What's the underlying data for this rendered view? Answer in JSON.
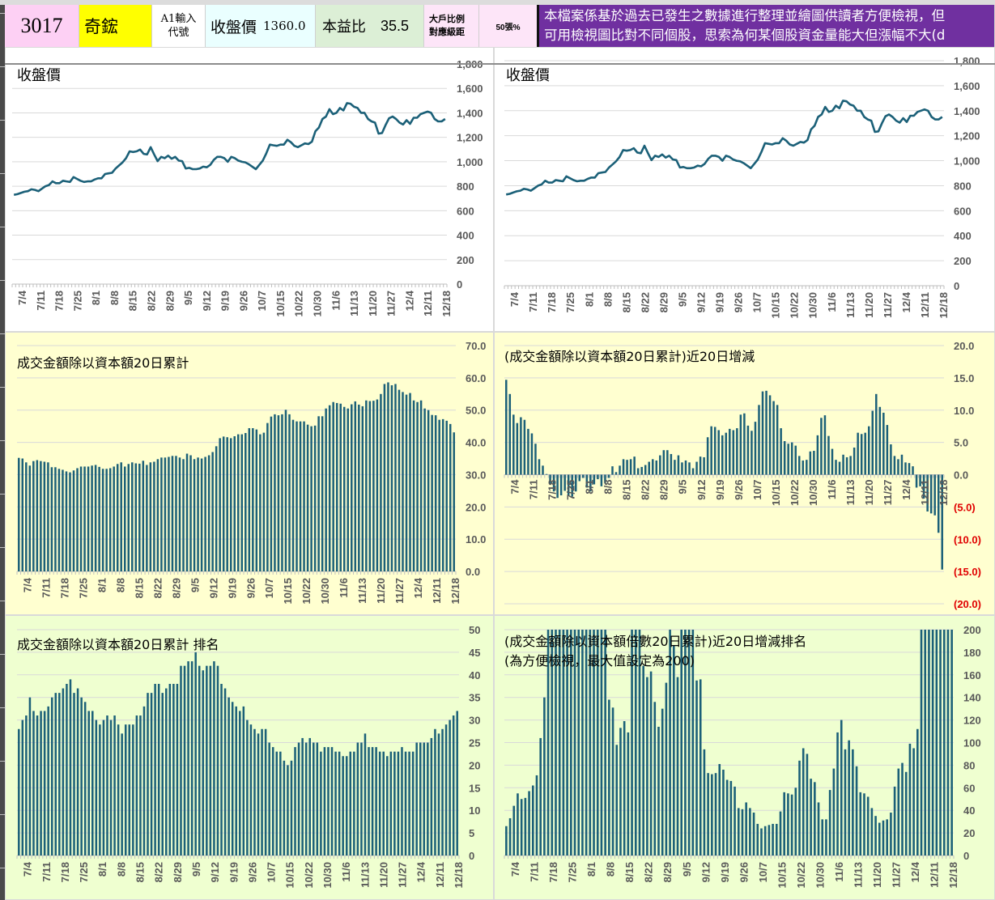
{
  "header": {
    "stock_code": "3017",
    "stock_name": "奇鋐",
    "input_hint_line1": "A1輸入",
    "input_hint_line2": "代號",
    "close_label": "收盤價",
    "close_value": "1360.0",
    "pe_label": "本益比",
    "pe_value": "35.5",
    "big_holder_line1": "大戶比例",
    "big_holder_line2": "對應級距",
    "big_holder_level": "50張%",
    "notice_line1": "本檔案係基於過去已發生之數據進行整理並繪圖供讀者方便檢視，但",
    "notice_line2": "可用檢視圖比對不同個股，思索為何某個股資金量能大但漲幅不大(d"
  },
  "colors": {
    "series": "#1b6078",
    "panel_yellow": "#ffffd0",
    "panel_green": "#efffd0",
    "notice_bg": "#7030a0",
    "negative_label": "#e00000"
  },
  "chart_data": [
    {
      "id": "price-left",
      "type": "line",
      "title": "收盤價",
      "xlabel": "",
      "ylabel": "",
      "ylim": [
        0,
        1800
      ],
      "yticks": [
        "0",
        "200",
        "400",
        "600",
        "800",
        "1,000",
        "1,200",
        "1,400",
        "1,600",
        "1,800"
      ],
      "xtick_labels": [
        "7/4",
        "7/11",
        "7/18",
        "7/25",
        "8/1",
        "8/8",
        "8/15",
        "8/22",
        "8/29",
        "9/5",
        "9/12",
        "9/19",
        "9/26",
        "10/7",
        "10/15",
        "10/22",
        "10/30",
        "11/6",
        "11/13",
        "11/20",
        "11/27",
        "12/4",
        "12/11",
        "12/18"
      ],
      "grid": true,
      "values": [
        730,
        735,
        745,
        755,
        760,
        775,
        770,
        760,
        780,
        800,
        810,
        840,
        825,
        825,
        845,
        840,
        835,
        875,
        860,
        845,
        835,
        840,
        840,
        855,
        865,
        865,
        900,
        905,
        910,
        945,
        970,
        995,
        1030,
        1085,
        1080,
        1085,
        1100,
        1065,
        1060,
        1120,
        1060,
        1005,
        1040,
        1030,
        1050,
        1025,
        1040,
        1010,
        1005,
        945,
        950,
        940,
        940,
        945,
        960,
        955,
        975,
        1015,
        1040,
        1040,
        1030,
        1000,
        1040,
        1030,
        1010,
        1000,
        995,
        980,
        960,
        940,
        975,
        1010,
        1070,
        1140,
        1135,
        1130,
        1140,
        1140,
        1180,
        1160,
        1130,
        1120,
        1135,
        1150,
        1145,
        1165,
        1250,
        1280,
        1350,
        1370,
        1430,
        1390,
        1400,
        1440,
        1420,
        1480,
        1475,
        1450,
        1440,
        1400,
        1400,
        1350,
        1330,
        1320,
        1230,
        1235,
        1300,
        1355,
        1370,
        1350,
        1320,
        1305,
        1340,
        1310,
        1360,
        1360,
        1390,
        1400,
        1410,
        1400,
        1350,
        1330,
        1330,
        1350
      ]
    },
    {
      "id": "price-right",
      "type": "line",
      "title": "收盤價",
      "xlabel": "",
      "ylabel": "",
      "ylim": [
        0,
        1800
      ],
      "yticks": [
        "0",
        "200",
        "400",
        "600",
        "800",
        "1,000",
        "1,200",
        "1,400",
        "1,600",
        "1,800"
      ],
      "xtick_labels": [
        "7/4",
        "7/11",
        "7/18",
        "7/25",
        "8/1",
        "8/8",
        "8/15",
        "8/22",
        "8/29",
        "9/5",
        "9/12",
        "9/19",
        "9/26",
        "10/7",
        "10/15",
        "10/22",
        "10/30",
        "11/6",
        "11/13",
        "11/20",
        "11/27",
        "12/4",
        "12/11",
        "12/18"
      ],
      "grid": true,
      "values_ref": "price-left"
    },
    {
      "id": "turnover-cum",
      "type": "bar",
      "title": "成交金額除以資本額20日累計",
      "xlabel": "",
      "ylabel": "",
      "ylim": [
        0,
        70
      ],
      "yticks": [
        "0.0",
        "10.0",
        "20.0",
        "30.0",
        "40.0",
        "50.0",
        "60.0",
        "70.0"
      ],
      "xtick_labels": [
        "7/4",
        "7/11",
        "7/18",
        "7/25",
        "8/1",
        "8/8",
        "8/15",
        "8/22",
        "8/29",
        "9/5",
        "9/12",
        "9/19",
        "9/26",
        "10/7",
        "10/15",
        "10/22",
        "10/30",
        "11/6",
        "11/13",
        "11/20",
        "11/27",
        "12/4",
        "12/11",
        "12/18"
      ],
      "grid": true,
      "values": [
        35.2,
        35.0,
        33.8,
        32.8,
        34.2,
        34.5,
        34.2,
        34.0,
        33.8,
        32.3,
        32.3,
        31.8,
        31.5,
        31.0,
        30.7,
        31.3,
        32.0,
        32.5,
        32.5,
        32.5,
        32.8,
        33.0,
        32.4,
        31.8,
        31.8,
        32.0,
        32.5,
        33.3,
        33.8,
        32.5,
        33.3,
        33.8,
        33.5,
        33.4,
        34.3,
        33.0,
        33.8,
        34.0,
        34.8,
        35.3,
        35.3,
        35.5,
        35.8,
        35.8,
        35.3,
        34.8,
        36.5,
        36.0,
        34.8,
        35.3,
        35.0,
        35.5,
        36.0,
        37.0,
        38.8,
        41.3,
        41.8,
        41.6,
        41.3,
        41.9,
        42.5,
        42.5,
        42.9,
        44.4,
        44.4,
        44.0,
        42.5,
        43.0,
        46.0,
        48.0,
        48.7,
        48.4,
        48.7,
        50.1,
        48.7,
        47.0,
        46.5,
        46.5,
        46.5,
        45.5,
        45.0,
        45.2,
        48.1,
        48.1,
        50.5,
        51.5,
        52.5,
        52.2,
        52.0,
        51.0,
        50.5,
        51.8,
        52.7,
        51.7,
        51.2,
        53.0,
        52.8,
        52.9,
        53.3,
        55.0,
        58.1,
        58.6,
        57.7,
        58.1,
        56.3,
        55.6,
        54.8,
        55.3,
        53.0,
        52.5,
        53.0,
        50.5,
        50.0,
        48.5,
        48.4,
        47.0,
        47.2,
        46.7,
        45.7,
        43.1
      ]
    },
    {
      "id": "turnover-delta",
      "type": "bar",
      "title": "(成交金額除以資本額20日累計)近20日增減",
      "xlabel": "",
      "ylabel": "",
      "ylim": [
        -20,
        20
      ],
      "yticks": [
        "(20.0)",
        "(15.0)",
        "(10.0)",
        "(5.0)",
        "0.0",
        "5.0",
        "10.0",
        "15.0",
        "20.0"
      ],
      "xtick_labels": [
        "7/4",
        "7/11",
        "7/18",
        "7/25",
        "8/1",
        "8/8",
        "8/15",
        "8/22",
        "8/29",
        "9/5",
        "9/12",
        "9/19",
        "9/26",
        "10/7",
        "10/15",
        "10/22",
        "10/30",
        "11/6",
        "11/13",
        "11/20",
        "11/27",
        "12/4",
        "12/11",
        "12/18"
      ],
      "grid": true,
      "values": [
        14.7,
        12.5,
        9.3,
        8.0,
        8.9,
        8.5,
        7.1,
        6.4,
        4.8,
        2.4,
        1.4,
        0.1,
        -1.5,
        -2.6,
        -3.6,
        -3.2,
        -2.5,
        -3.2,
        -3.4,
        -2.6,
        -1.0,
        -0.5,
        -2.0,
        -2.6,
        -1.5,
        -0.7,
        -1.8,
        -1.3,
        -0.5,
        1.3,
        0.4,
        1.4,
        2.4,
        2.3,
        2.4,
        2.8,
        1.0,
        1.2,
        1.5,
        2.0,
        2.4,
        2.2,
        3.0,
        3.8,
        3.8,
        3.2,
        2.3,
        3.0,
        1.9,
        2.2,
        1.9,
        1.0,
        2.0,
        2.8,
        2.7,
        5.8,
        7.5,
        7.4,
        6.9,
        6.1,
        6.5,
        7.1,
        6.9,
        7.2,
        9.3,
        9.5,
        7.6,
        6.8,
        8.2,
        10.8,
        12.9,
        13.0,
        12.3,
        11.4,
        10.8,
        7.2,
        5.2,
        4.8,
        5.0,
        4.5,
        2.9,
        2.2,
        2.3,
        3.6,
        3.7,
        6.1,
        8.8,
        9.2,
        6.0,
        4.0,
        2.3,
        2.0,
        3.1,
        2.7,
        2.9,
        4.2,
        6.5,
        6.3,
        6.5,
        7.5,
        9.9,
        12.5,
        10.5,
        9.6,
        7.7,
        4.7,
        2.9,
        2.4,
        3.1,
        1.9,
        1.8,
        1.3,
        -2.0,
        -1.8,
        -3.7,
        -5.7,
        -6.0,
        -6.3,
        -9.0,
        -14.7
      ]
    },
    {
      "id": "turnover-rank",
      "type": "bar",
      "title": "成交金額除以資本額20日累計 排名",
      "xlabel": "",
      "ylabel": "",
      "ylim": [
        0,
        50
      ],
      "yticks": [
        "0",
        "5",
        "10",
        "15",
        "20",
        "25",
        "30",
        "35",
        "40",
        "45",
        "50"
      ],
      "xtick_labels": [
        "7/4",
        "7/11",
        "7/18",
        "7/25",
        "8/1",
        "8/8",
        "8/15",
        "8/22",
        "8/29",
        "9/5",
        "9/12",
        "9/19",
        "9/26",
        "10/7",
        "10/15",
        "10/22",
        "10/30",
        "11/6",
        "11/13",
        "11/20",
        "11/27",
        "12/4",
        "12/11",
        "12/18"
      ],
      "grid": true,
      "values": [
        28,
        30,
        31,
        35,
        32,
        31,
        32,
        32,
        33,
        35,
        36,
        36,
        37,
        38,
        39,
        36,
        37,
        35,
        34,
        32,
        32,
        30,
        29,
        30,
        31,
        30,
        31,
        29,
        27,
        29,
        29,
        29,
        31,
        31,
        33,
        36,
        36,
        38,
        38,
        36,
        37,
        38,
        38,
        38,
        42,
        42,
        43,
        43,
        45,
        42,
        41,
        42,
        42,
        43,
        42,
        38,
        37,
        35,
        34,
        33,
        32,
        33,
        30,
        29,
        28,
        27,
        28,
        28,
        25,
        24,
        23,
        23,
        21,
        20,
        21,
        24,
        25,
        26,
        25,
        26,
        25,
        25,
        23,
        24,
        24,
        24,
        23,
        23,
        22,
        22,
        23,
        23,
        25,
        25,
        27,
        24,
        24,
        24,
        23,
        23,
        22,
        23,
        23,
        23,
        24,
        23,
        23,
        23,
        25,
        25,
        25,
        25,
        26,
        28,
        27,
        28,
        29,
        30,
        31,
        32
      ]
    },
    {
      "id": "turnover-delta-rank",
      "type": "bar",
      "title": "(成交金額除以資本額倍數20日累計)近20日增減排名",
      "subtitle": "(為方便檢視，最大值設定為200)",
      "xlabel": "",
      "ylabel": "",
      "ylim": [
        0,
        200
      ],
      "yticks": [
        "0",
        "20",
        "40",
        "60",
        "80",
        "100",
        "120",
        "140",
        "160",
        "180",
        "200"
      ],
      "xtick_labels": [
        "7/4",
        "7/11",
        "7/18",
        "7/25",
        "8/1",
        "8/8",
        "8/15",
        "8/22",
        "8/29",
        "9/5",
        "9/12",
        "9/19",
        "9/26",
        "10/7",
        "10/15",
        "10/22",
        "10/30",
        "11/6",
        "11/13",
        "11/20",
        "11/27",
        "12/4",
        "12/11",
        "12/18"
      ],
      "grid": true,
      "values": [
        26,
        33,
        44,
        55,
        50,
        51,
        57,
        62,
        71,
        104,
        140,
        200,
        200,
        200,
        200,
        200,
        200,
        200,
        200,
        200,
        200,
        200,
        200,
        200,
        200,
        200,
        200,
        138,
        131,
        98,
        113,
        119,
        109,
        200,
        200,
        200,
        168,
        158,
        163,
        136,
        114,
        130,
        153,
        200,
        186,
        158,
        200,
        200,
        200,
        200,
        155,
        156,
        94,
        73,
        72,
        73,
        81,
        76,
        67,
        66,
        61,
        42,
        41,
        47,
        42,
        38,
        28,
        24,
        26,
        27,
        28,
        28,
        39,
        56,
        55,
        54,
        60,
        84,
        95,
        90,
        68,
        65,
        47,
        32,
        32,
        58,
        77,
        109,
        120,
        94,
        102,
        94,
        79,
        56,
        55,
        52,
        42,
        35,
        29,
        31,
        32,
        38,
        61,
        77,
        82,
        74,
        99,
        95,
        112,
        200,
        200,
        200,
        200,
        200,
        200,
        200,
        200,
        200
      ]
    }
  ]
}
